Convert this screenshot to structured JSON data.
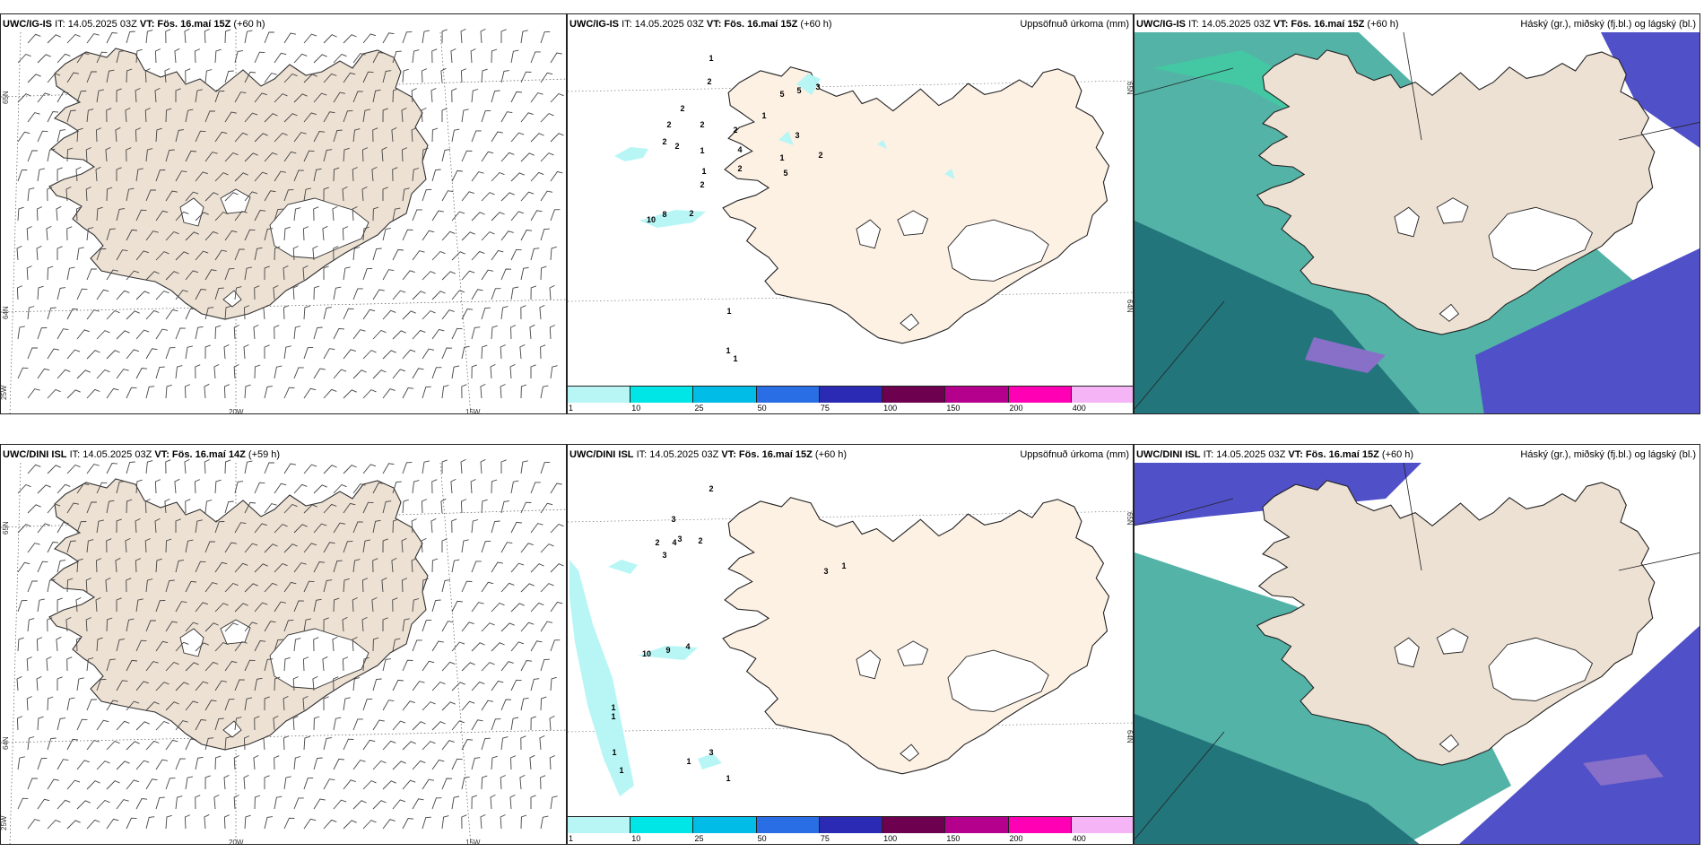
{
  "panels": {
    "top_left": {
      "model": "UWC/IG-IS",
      "it": "IT: 14.05.2025 03Z",
      "vt_label": "VT:",
      "vt": "Fös. 16.maí 15Z",
      "lead": "(+60 h)",
      "lat_labels": [
        "65N",
        "64N"
      ],
      "lon_labels": [
        "25W",
        "20W",
        "15W"
      ]
    },
    "top_mid": {
      "model": "UWC/IG-IS",
      "it": "IT: 14.05.2025 03Z",
      "vt_label": "VT:",
      "vt": "Fös. 16.maí 15Z",
      "lead": "(+60 h)",
      "right_title": "Uppsöfnuð úrkoma (mm)",
      "lat_labels": [
        "65N",
        "64N"
      ],
      "values": [
        "1",
        "2",
        "2",
        "2",
        "2",
        "2",
        "2",
        "1",
        "2",
        "4",
        "2",
        "1",
        "3",
        "5",
        "5",
        "3",
        "2",
        "5",
        "1",
        "1",
        "10",
        "8",
        "2",
        "1",
        "1",
        "1",
        "2"
      ]
    },
    "top_right": {
      "model": "UWC/IG-IS",
      "it": "IT: 14.05.2025 03Z",
      "vt_label": "VT:",
      "vt": "Fös. 16.maí 15Z",
      "lead": "(+60 h)",
      "right_title": "Háský (gr.), miðský (fj.bl.) og lágský (bl.)"
    },
    "bottom_left": {
      "model": "UWC/DINI ISL",
      "it": "IT: 14.05.2025 03Z",
      "vt_label": "VT:",
      "vt": "Fös. 16.maí 14Z",
      "lead": "(+59 h)",
      "lat_labels": [
        "65N",
        "64N"
      ],
      "lon_labels": [
        "25W",
        "20W",
        "15W"
      ]
    },
    "bottom_mid": {
      "model": "UWC/DINI ISL",
      "it": "IT: 14.05.2025 03Z",
      "vt_label": "VT:",
      "vt": "Fös. 16.maí 15Z",
      "lead": "(+60 h)",
      "right_title": "Uppsöfnuð úrkoma (mm)",
      "lat_labels": [
        "65N",
        "64N"
      ],
      "values": [
        "2",
        "3",
        "3",
        "2",
        "4",
        "2",
        "3",
        "10",
        "9",
        "4",
        "1",
        "1",
        "1",
        "1",
        "3",
        "1",
        "1",
        "3",
        "1"
      ]
    },
    "bottom_right": {
      "model": "UWC/DINI ISL",
      "it": "IT: 14.05.2025 03Z",
      "vt_label": "VT:",
      "vt": "Fös. 16.maí 15Z",
      "lead": "(+60 h)",
      "right_title": "Háský (gr.), miðský (fj.bl.) og lágský (bl.)"
    }
  },
  "colorbar": {
    "ticks": [
      "1",
      "10",
      "25",
      "50",
      "75",
      "100",
      "150",
      "200",
      "400"
    ],
    "colors": [
      "#b8f5f5",
      "#00e6e6",
      "#00bce6",
      "#2a6ee6",
      "#2a2ab4",
      "#6e0050",
      "#b4008c",
      "#ff00b4",
      "#f5b4f5"
    ]
  },
  "colors": {
    "land": "#ede1d3",
    "land_precip": "#fdf1e4",
    "precip_light": "#b4f5f5",
    "cloud_high": "#3aa88a",
    "cloud_mid": "#1a9a8a",
    "cloud_low": "#5050c8",
    "ocean_dark": "#1e6e78"
  }
}
